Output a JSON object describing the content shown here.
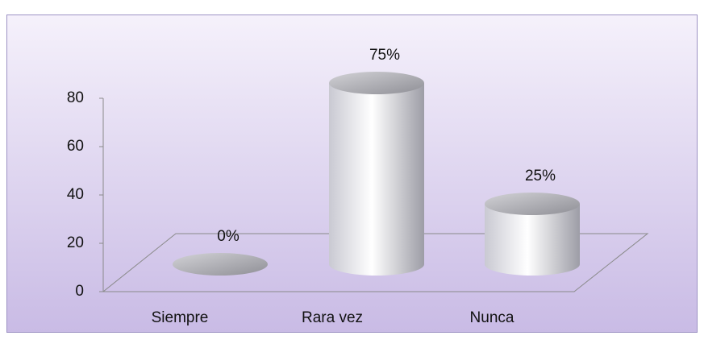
{
  "chart_data": {
    "type": "bar",
    "categories": [
      "Siempre",
      "Rara vez",
      "Nunca"
    ],
    "values": [
      0,
      75,
      25
    ],
    "value_labels": [
      "0%",
      "75%",
      "25%"
    ],
    "color": "#c9c9d2",
    "ylim": [
      0,
      80
    ],
    "yticks": [
      0,
      20,
      40,
      60,
      80
    ]
  }
}
